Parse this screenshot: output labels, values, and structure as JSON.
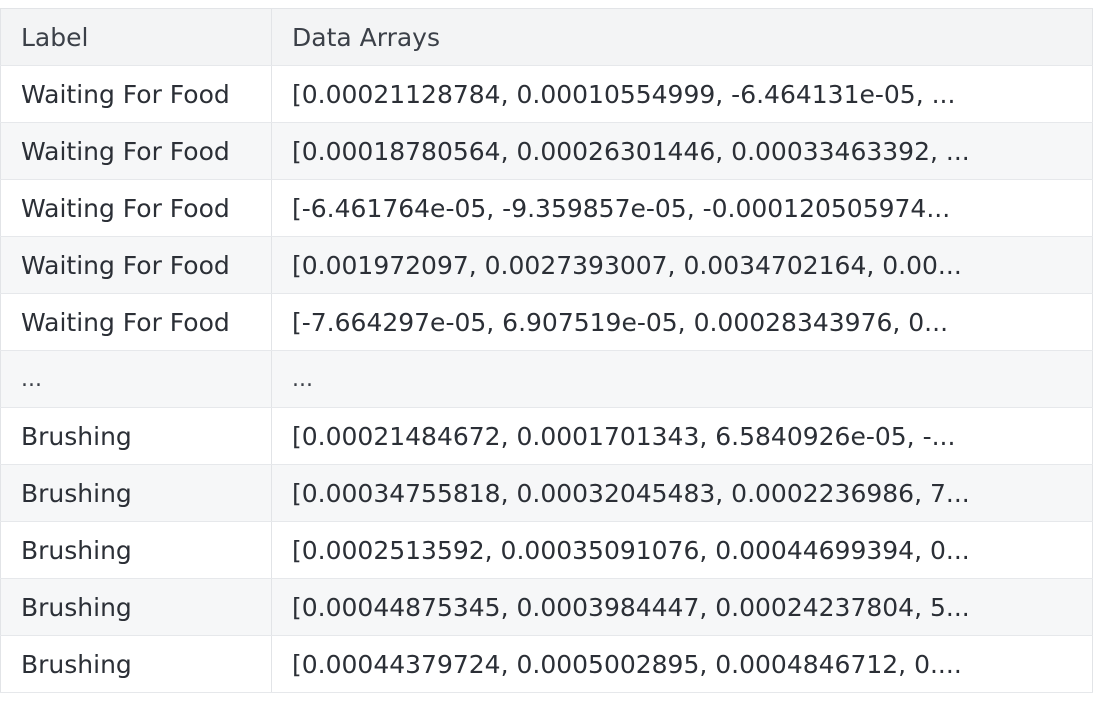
{
  "table": {
    "columns": [
      "Label",
      "Data Arrays"
    ],
    "rows": [
      {
        "label": "Waiting For Food",
        "data": "[0.00021128784, 0.00010554999, -6.464131e-05, ..."
      },
      {
        "label": "Waiting For Food",
        "data": "[0.00018780564, 0.00026301446, 0.00033463392, ..."
      },
      {
        "label": "Waiting For Food",
        "data": "[-6.461764e-05, -9.359857e-05, -0.000120505974..."
      },
      {
        "label": "Waiting For Food",
        "data": "[0.001972097, 0.0027393007, 0.0034702164, 0.00..."
      },
      {
        "label": "Waiting For Food",
        "data": "[-7.664297e-05, 6.907519e-05, 0.00028343976, 0..."
      },
      {
        "label": "...",
        "data": "..."
      },
      {
        "label": "Brushing",
        "data": "[0.00021484672, 0.0001701343, 6.5840926e-05, -..."
      },
      {
        "label": "Brushing",
        "data": "[0.00034755818, 0.00032045483, 0.0002236986, 7..."
      },
      {
        "label": "Brushing",
        "data": "[0.0002513592, 0.00035091076, 0.00044699394, 0..."
      },
      {
        "label": "Brushing",
        "data": "[0.00044875345, 0.0003984447, 0.00024237804, 5..."
      },
      {
        "label": "Brushing",
        "data": "[0.00044379724, 0.0005002895, 0.0004846712, 0...."
      }
    ]
  }
}
